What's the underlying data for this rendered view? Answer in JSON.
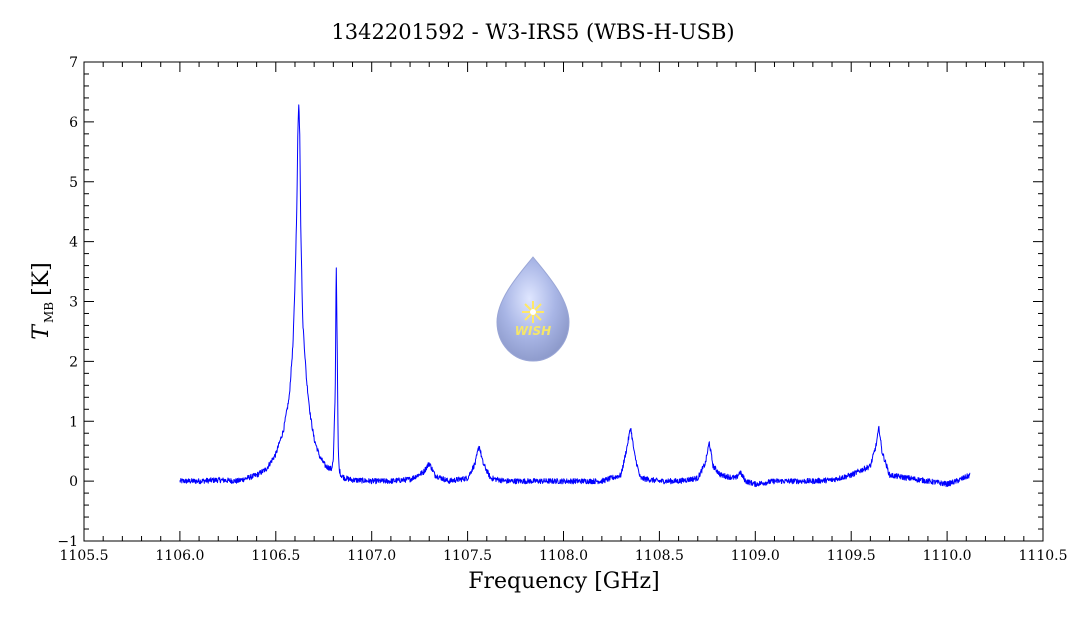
{
  "chart_data": {
    "type": "line",
    "title": "1342201592 - W3-IRS5 (WBS-H-USB)",
    "xlabel": "Frequency [GHz]",
    "ylabel_main": "T",
    "ylabel_sub": "MB",
    "ylabel_unit": "[K]",
    "xlim": [
      1105.5,
      1110.5
    ],
    "ylim": [
      -1,
      7
    ],
    "x_ticks": [
      1105.5,
      1106.0,
      1106.5,
      1107.0,
      1107.5,
      1108.0,
      1108.5,
      1109.0,
      1109.5,
      1110.0,
      1110.5
    ],
    "x_tick_labels": [
      "1105.5",
      "1106.0",
      "1106.5",
      "1107.0",
      "1107.5",
      "1108.0",
      "1108.5",
      "1109.0",
      "1109.5",
      "1110.0",
      "1110.5"
    ],
    "y_ticks": [
      -1,
      0,
      1,
      2,
      3,
      4,
      5,
      6,
      7
    ],
    "y_tick_labels": [
      "−1",
      "0",
      "1",
      "2",
      "3",
      "4",
      "5",
      "6",
      "7"
    ],
    "grid": false,
    "line_color": "#0000ff",
    "series": [
      {
        "x": [
          1106.0,
          1106.1,
          1106.2,
          1106.3,
          1106.4,
          1106.45,
          1106.5,
          1106.54,
          1106.57,
          1106.59,
          1106.6,
          1106.61,
          1106.615,
          1106.62,
          1106.625,
          1106.63,
          1106.64,
          1106.66,
          1106.68,
          1106.7,
          1106.73,
          1106.76,
          1106.79,
          1106.8,
          1106.81,
          1106.815,
          1106.82,
          1106.825,
          1106.83,
          1106.84,
          1106.86,
          1106.9,
          1107.0,
          1107.1,
          1107.2,
          1107.27,
          1107.3,
          1107.33,
          1107.4,
          1107.5,
          1107.54,
          1107.56,
          1107.58,
          1107.62,
          1107.7,
          1107.8,
          1107.9,
          1108.0,
          1108.1,
          1108.2,
          1108.3,
          1108.33,
          1108.35,
          1108.37,
          1108.4,
          1108.5,
          1108.6,
          1108.7,
          1108.74,
          1108.76,
          1108.78,
          1108.82,
          1108.9,
          1108.92,
          1108.95,
          1109.0,
          1109.1,
          1109.2,
          1109.3,
          1109.4,
          1109.5,
          1109.55,
          1109.6,
          1109.63,
          1109.645,
          1109.66,
          1109.7,
          1109.8,
          1109.9,
          1110.0,
          1110.05,
          1110.12
        ],
        "y": [
          0.0,
          0.0,
          0.02,
          0.0,
          0.1,
          0.2,
          0.45,
          0.85,
          1.4,
          2.3,
          3.3,
          4.6,
          5.9,
          6.3,
          5.8,
          4.3,
          2.7,
          1.7,
          1.1,
          0.7,
          0.4,
          0.25,
          0.2,
          0.35,
          1.5,
          3.7,
          2.3,
          0.6,
          0.2,
          0.1,
          0.05,
          0.02,
          0.0,
          0.0,
          0.03,
          0.15,
          0.3,
          0.1,
          0.0,
          0.05,
          0.3,
          0.6,
          0.3,
          0.05,
          0.0,
          0.0,
          0.0,
          0.0,
          0.0,
          0.0,
          0.1,
          0.55,
          0.9,
          0.45,
          0.05,
          0.0,
          0.0,
          0.05,
          0.3,
          0.65,
          0.25,
          0.1,
          0.05,
          0.15,
          0.0,
          -0.05,
          0.0,
          0.0,
          0.0,
          0.02,
          0.1,
          0.18,
          0.25,
          0.6,
          0.9,
          0.5,
          0.1,
          0.05,
          0.0,
          -0.05,
          0.0,
          0.1
        ]
      }
    ]
  },
  "watermark": {
    "text": "WISH",
    "drop_color": "#a9b6e6",
    "star_color": "#ffe866"
  }
}
